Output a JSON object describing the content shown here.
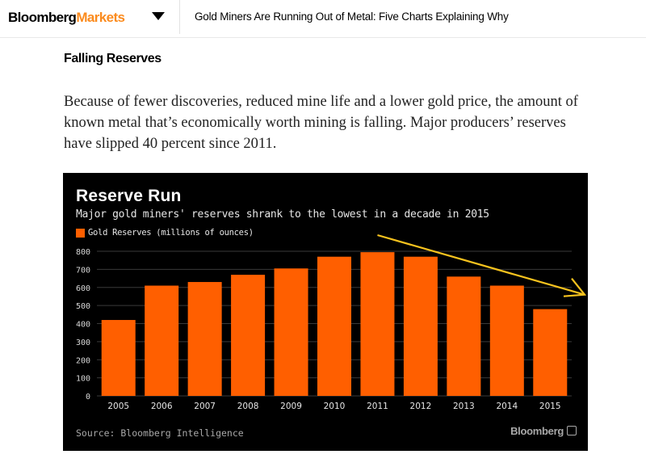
{
  "header": {
    "logo_main": "Bloomberg",
    "logo_accent": "Markets",
    "headline": "Gold Miners Are Running Out of Metal: Five Charts Explaining Why"
  },
  "article": {
    "section_title": "Falling Reserves",
    "paragraph": "Because of fewer discoveries, reduced mine life and a lower gold price, the amount of known metal that’s economically worth mining is falling. Major producers’ reserves have slipped 40 percent since 2011."
  },
  "colors": {
    "bar": "#ff5f00",
    "annotation_arrow": "#f7c31e",
    "logo_accent": "#fb8b1e"
  },
  "chart_data": {
    "type": "bar",
    "title": "Reserve Run",
    "subtitle": "Major gold miners' reserves shrank to the lowest in a decade in 2015",
    "legend": "Gold Reserves (millions of ounces)",
    "categories": [
      "2005",
      "2006",
      "2007",
      "2008",
      "2009",
      "2010",
      "2011",
      "2012",
      "2013",
      "2014",
      "2015"
    ],
    "values": [
      420,
      610,
      630,
      670,
      705,
      770,
      795,
      770,
      660,
      610,
      480
    ],
    "xlabel": "",
    "ylabel": "",
    "ylim": [
      0,
      800
    ],
    "yticks": [
      0,
      100,
      200,
      300,
      400,
      500,
      600,
      700,
      800
    ],
    "grid": true,
    "source": "Source: Bloomberg Intelligence",
    "brand": "Bloomberg",
    "annotation": "downward trend arrow"
  }
}
